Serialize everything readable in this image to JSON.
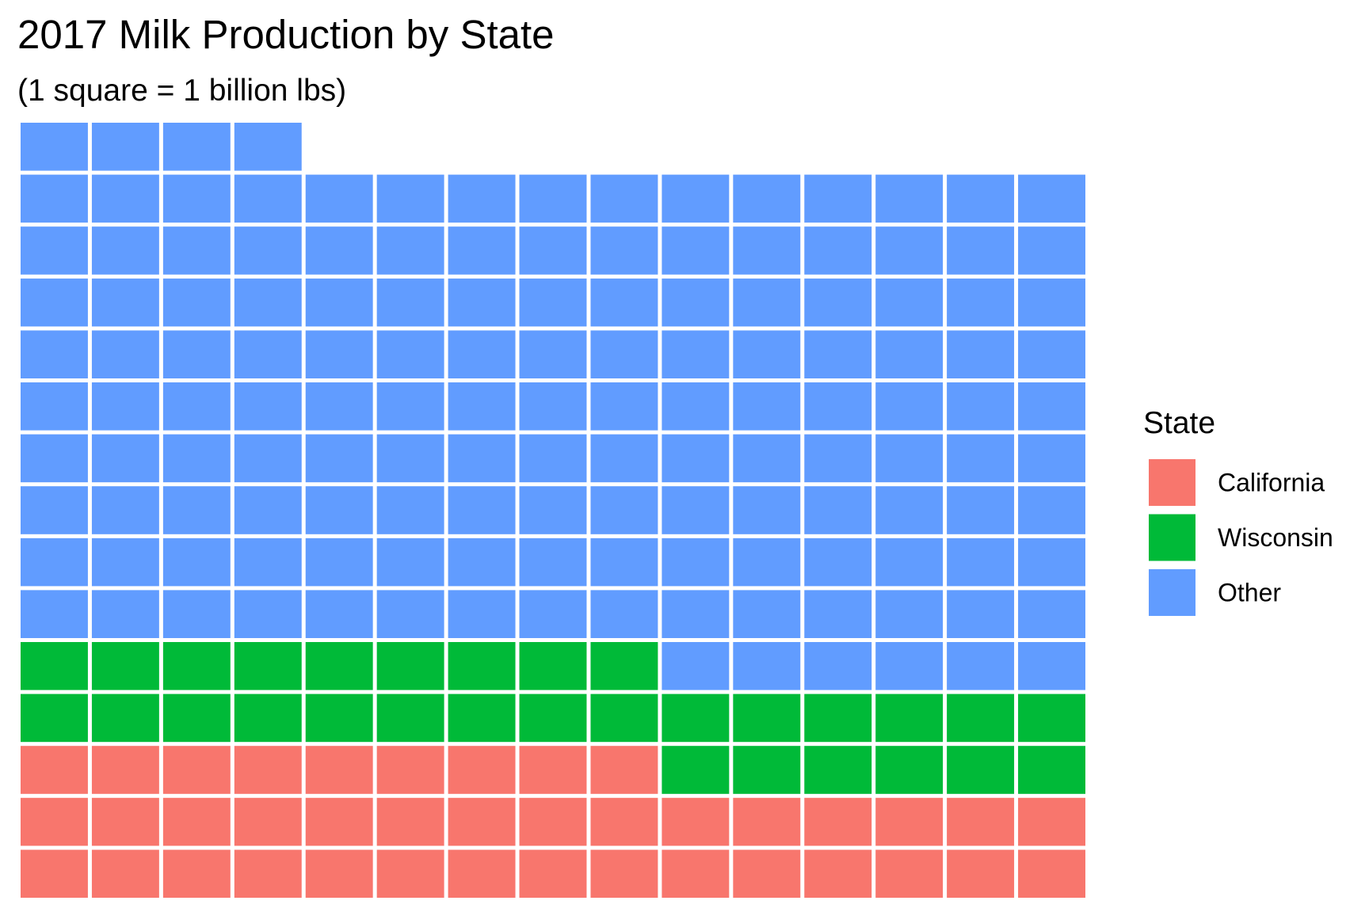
{
  "chart_data": {
    "type": "waffle",
    "title": "2017 Milk Production by State",
    "subtitle": "(1 square = 1 billion lbs)",
    "columns": 15,
    "fill_order": "bottom-up, left-to-right",
    "series": [
      {
        "name": "California",
        "value": 39,
        "color": "#F8766D"
      },
      {
        "name": "Wisconsin",
        "value": 30,
        "color": "#00BA38"
      },
      {
        "name": "Other",
        "value": 145,
        "color": "#619CFF"
      }
    ],
    "legend": {
      "title": "State",
      "position": "right"
    },
    "grid": false
  }
}
